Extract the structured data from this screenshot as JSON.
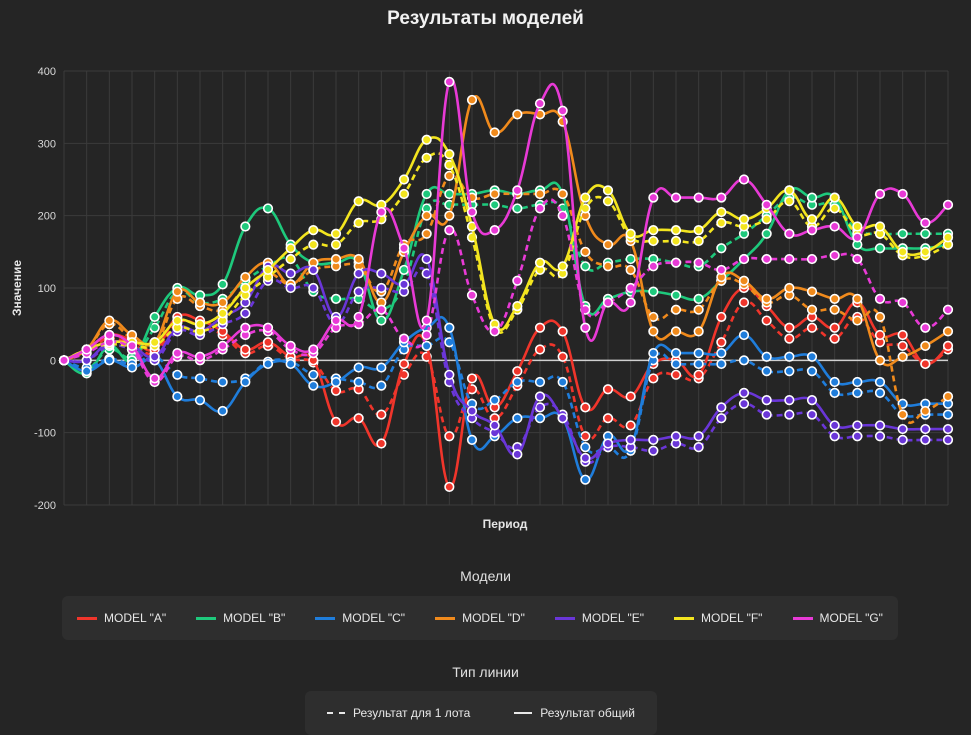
{
  "chart_data": {
    "type": "line",
    "title": "Результаты моделей",
    "xlabel": "Период",
    "ylabel": "Значение",
    "ylim": [
      -200,
      400
    ],
    "yticks": [
      -200,
      -100,
      0,
      100,
      200,
      300,
      400
    ],
    "n_periods": 40,
    "legend_models_title": "Модели",
    "legend_types_title": "Тип линии",
    "line_types": [
      {
        "name": "Результат для 1 лота",
        "style": "dashed"
      },
      {
        "name": "Результат общий",
        "style": "solid"
      }
    ],
    "series": [
      {
        "name": "MODEL \"A\"",
        "color": "#f0352b",
        "total": [
          0,
          15,
          35,
          28,
          15,
          60,
          55,
          40,
          15,
          25,
          5,
          0,
          -85,
          -80,
          -115,
          -5,
          20,
          -175,
          -25,
          -65,
          -15,
          45,
          40,
          -65,
          -40,
          -50,
          -5,
          0,
          -20,
          60,
          100,
          75,
          45,
          60,
          45,
          80,
          35,
          35,
          -5,
          20
        ],
        "lot": [
          0,
          15,
          30,
          22,
          10,
          52,
          48,
          35,
          10,
          20,
          2,
          -3,
          -42,
          -40,
          -75,
          -20,
          5,
          -105,
          -40,
          -80,
          -35,
          15,
          5,
          -105,
          -80,
          -90,
          -25,
          -20,
          -25,
          25,
          80,
          55,
          30,
          45,
          30,
          60,
          25,
          20,
          -5,
          15
        ]
      },
      {
        "name": "MODEL \"B\"",
        "color": "#1ec97c",
        "total": [
          0,
          -18,
          20,
          0,
          60,
          100,
          90,
          105,
          185,
          210,
          160,
          135,
          135,
          135,
          55,
          125,
          230,
          230,
          230,
          235,
          230,
          235,
          230,
          75,
          85,
          95,
          95,
          90,
          85,
          110,
          140,
          175,
          235,
          225,
          225,
          160,
          155,
          155,
          155,
          160
        ],
        "lot": [
          0,
          -12,
          15,
          5,
          45,
          95,
          80,
          85,
          110,
          130,
          140,
          95,
          85,
          85,
          70,
          105,
          210,
          215,
          215,
          215,
          210,
          215,
          210,
          130,
          135,
          140,
          140,
          135,
          130,
          155,
          175,
          200,
          225,
          215,
          215,
          180,
          175,
          175,
          175,
          175
        ]
      },
      {
        "name": "MODEL \"C\"",
        "color": "#1f7ddb",
        "total": [
          0,
          -15,
          0,
          -10,
          0,
          -50,
          -55,
          -70,
          -30,
          -5,
          -5,
          -35,
          -30,
          -10,
          -10,
          25,
          45,
          45,
          -110,
          -105,
          -80,
          -80,
          -80,
          -165,
          -105,
          -120,
          10,
          10,
          10,
          10,
          35,
          5,
          5,
          5,
          -30,
          -30,
          -30,
          -60,
          -60,
          -60
        ],
        "lot": [
          0,
          -10,
          2,
          -5,
          5,
          -20,
          -25,
          -30,
          -25,
          -2,
          -2,
          -20,
          -25,
          -30,
          -35,
          15,
          20,
          25,
          -60,
          -55,
          -30,
          -30,
          -30,
          -120,
          -120,
          -125,
          0,
          -5,
          -5,
          -5,
          0,
          -15,
          -15,
          -15,
          -45,
          -45,
          -45,
          -75,
          -75,
          -75
        ]
      },
      {
        "name": "MODEL \"D\"",
        "color": "#f08a1c",
        "total": [
          0,
          15,
          55,
          35,
          25,
          95,
          80,
          80,
          115,
          135,
          105,
          135,
          140,
          140,
          80,
          150,
          200,
          200,
          360,
          315,
          340,
          340,
          330,
          200,
          160,
          165,
          40,
          40,
          40,
          115,
          110,
          85,
          100,
          95,
          85,
          85,
          0,
          5,
          20,
          40
        ],
        "lot": [
          0,
          15,
          50,
          30,
          20,
          85,
          75,
          70,
          100,
          120,
          105,
          125,
          130,
          130,
          95,
          160,
          175,
          255,
          225,
          230,
          230,
          230,
          230,
          150,
          130,
          125,
          60,
          70,
          70,
          110,
          105,
          80,
          90,
          70,
          70,
          55,
          60,
          -75,
          -70,
          -50
        ]
      },
      {
        "name": "MODEL \"E\"",
        "color": "#6a36d8",
        "total": [
          0,
          0,
          25,
          20,
          5,
          45,
          40,
          60,
          80,
          130,
          120,
          125,
          60,
          120,
          120,
          105,
          140,
          -20,
          -70,
          -90,
          -130,
          -50,
          -80,
          -135,
          -115,
          -110,
          -110,
          -105,
          -105,
          -65,
          -45,
          -55,
          -55,
          -55,
          -90,
          -90,
          -90,
          -95,
          -95,
          -95
        ],
        "lot": [
          0,
          0,
          20,
          15,
          0,
          40,
          35,
          50,
          65,
          110,
          100,
          100,
          50,
          95,
          100,
          95,
          120,
          -30,
          -80,
          -100,
          -120,
          -65,
          -75,
          -140,
          -120,
          -120,
          -125,
          -115,
          -120,
          -80,
          -60,
          -75,
          -75,
          -75,
          -105,
          -105,
          -105,
          -110,
          -110,
          -110
        ]
      },
      {
        "name": "MODEL \"F\"",
        "color": "#f3e51f",
        "total": [
          0,
          15,
          25,
          25,
          25,
          55,
          50,
          65,
          100,
          125,
          155,
          180,
          175,
          220,
          215,
          250,
          305,
          285,
          185,
          50,
          75,
          135,
          130,
          225,
          235,
          175,
          180,
          180,
          180,
          205,
          195,
          210,
          235,
          195,
          225,
          185,
          185,
          150,
          150,
          170
        ],
        "lot": [
          0,
          15,
          22,
          20,
          20,
          45,
          40,
          55,
          90,
          115,
          140,
          160,
          160,
          190,
          195,
          230,
          280,
          270,
          170,
          45,
          70,
          125,
          120,
          210,
          220,
          170,
          165,
          165,
          165,
          190,
          185,
          195,
          220,
          185,
          210,
          175,
          175,
          145,
          145,
          160
        ]
      },
      {
        "name": "MODEL \"G\"",
        "color": "#e83ad6",
        "total": [
          0,
          15,
          35,
          20,
          -25,
          10,
          5,
          20,
          45,
          45,
          20,
          15,
          55,
          60,
          205,
          155,
          55,
          385,
          205,
          180,
          235,
          355,
          345,
          45,
          80,
          80,
          225,
          225,
          225,
          225,
          250,
          215,
          175,
          180,
          185,
          170,
          230,
          230,
          190,
          215
        ],
        "lot": [
          0,
          10,
          25,
          15,
          -30,
          5,
          0,
          15,
          35,
          40,
          15,
          10,
          45,
          50,
          70,
          30,
          35,
          180,
          90,
          40,
          110,
          210,
          200,
          70,
          80,
          100,
          130,
          135,
          135,
          125,
          140,
          140,
          140,
          140,
          145,
          140,
          85,
          80,
          45,
          70
        ]
      }
    ]
  }
}
